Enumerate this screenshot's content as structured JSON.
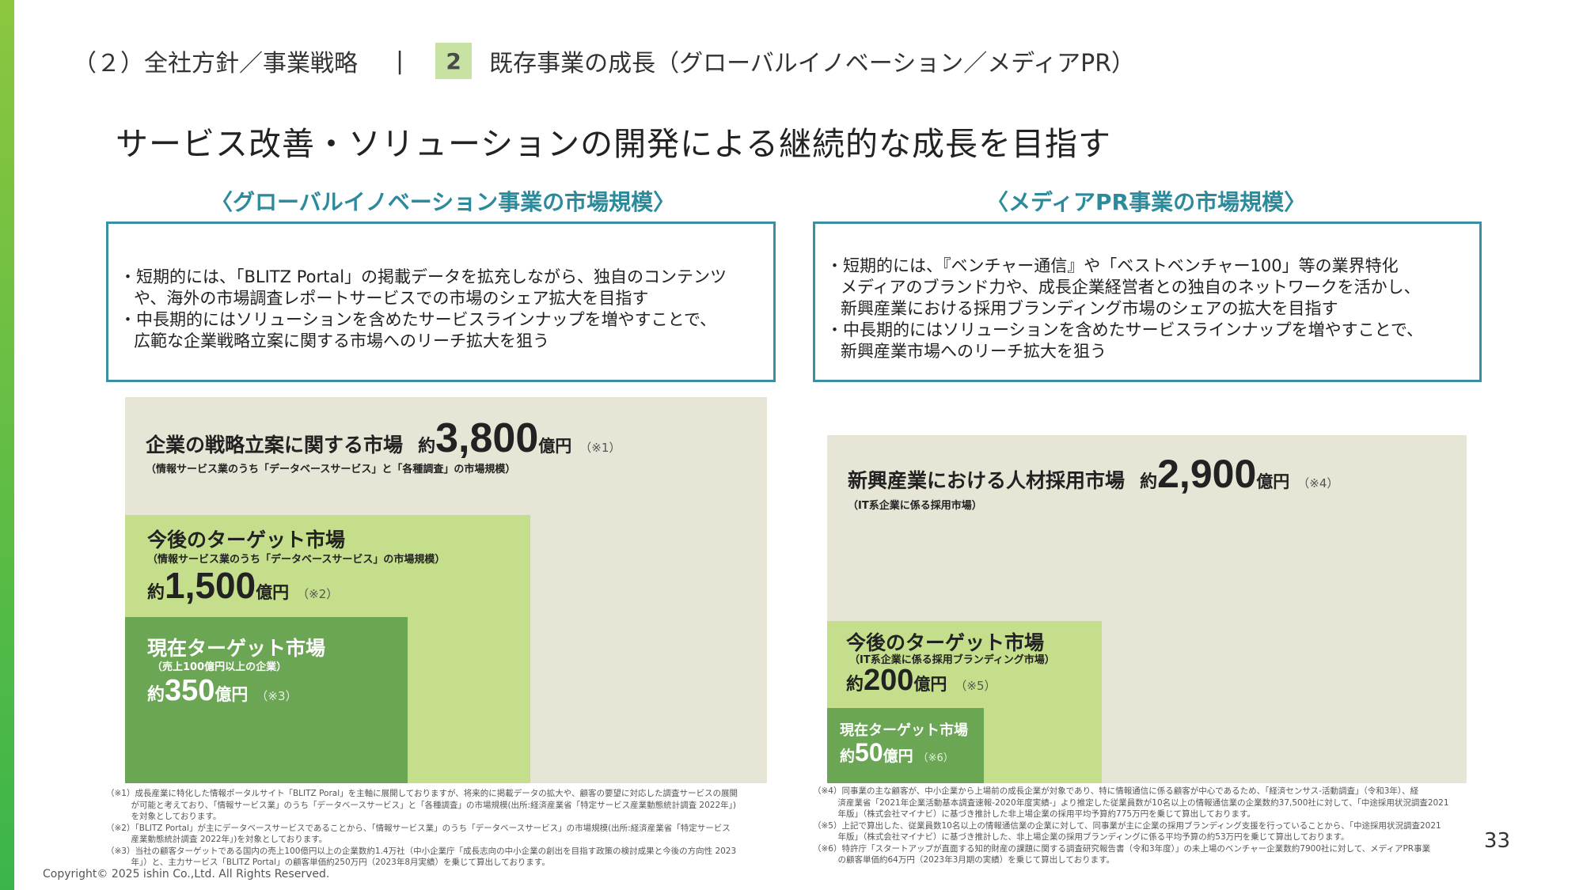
{
  "header": {
    "section": "（２）全社方針／事業戦略",
    "separator": "|",
    "number": "2",
    "title": "既存事業の成長（グローバルイノベーション／メディアPR）"
  },
  "main_title": "サービス改善・ソリューションの開発による継続的な成長を目指す",
  "left": {
    "heading": "〈グローバルイノベーション事業の市場規模〉",
    "bullets": [
      "短期的には、「BLITZ Portal」の掲載データを拡充しながら、独自のコンテンツ\nや、海外の市場調査レポートサービスでの市場のシェア拡大を目指す",
      "中長期的にはソリューションを含めたサービスラインナップを増やすことで、\n広範な企業戦略立案に関する市場へのリーチ拡大を狙う"
    ],
    "outer": {
      "title": "企業の戦略立案に関する市場",
      "prefix": "約",
      "value": "3,800",
      "unit": "億円",
      "note": "（※1）",
      "sub": "（情報サービス業のうち「データベースサービス」と「各種調査」の市場規模）"
    },
    "mid": {
      "title": "今後のターゲット市場",
      "sub": "（情報サービス業のうち「データベースサービス」の市場規模）",
      "prefix": "約",
      "value": "1,500",
      "unit": "億円",
      "note": "（※2）"
    },
    "inner": {
      "title": "現在ターゲット市場",
      "sub": "（売上100億円以上の企業）",
      "prefix": "約",
      "value": "350",
      "unit": "億円",
      "note": "（※3）"
    },
    "notes": [
      "（※1）成長産業に特化した情報ポータルサイト「BLITZ Poral」を主軸に展開しておりますが、将来的に掲載データの拡大や、顧客の要望に対応した調査サービスの展開",
      "　　　が可能と考えており、「情報サービス業」のうち「データベースサービス」と「各種調査」の市場規模(出所:経済産業省「特定サービス産業動態統計調査 2022年」)",
      "　　　を対象としております。",
      "（※2）「BLITZ Portal」が主にデータベースサービスであることから、「情報サービス業」のうち「データベースサービス」の市場規模(出所:経済産業省「特定サービス",
      "　　　産業動態統計調査 2022年」)を対象としております。",
      "（※3）当社の顧客ターゲットである国内の売上100億円以上の企業数約1.4万社（中小企業庁「成長志向の中小企業の創出を目指す政策の検討成果と今後の方向性 2023",
      "　　　年」）と、主力サービス「BLITZ Portal」の顧客単価約250万円（2023年8月実績）を乗じて算出しております。"
    ]
  },
  "right": {
    "heading": "〈メディアPR事業の市場規模〉",
    "bullets": [
      "短期的には、『ベンチャー通信』や「ベストベンチャー100」等の業界特化\nメディアのブランド力や、成長企業経営者との独自のネットワークを活かし、\n新興産業における採用ブランディング市場のシェアの拡大を目指す",
      "中長期的にはソリューションを含めたサービスラインナップを増やすことで、\n新興産業市場へのリーチ拡大を狙う"
    ],
    "outer": {
      "title": "新興産業における人材採用市場",
      "prefix": "約",
      "value": "2,900",
      "unit": "億円",
      "note": "（※4）",
      "sub": "（IT系企業に係る採用市場）"
    },
    "mid": {
      "title": "今後のターゲット市場",
      "sub": "（IT系企業に係る採用ブランディング市場）",
      "prefix": "約",
      "value": "200",
      "unit": "億円",
      "note": "（※5）"
    },
    "inner": {
      "title": "現在ターゲット市場",
      "prefix": "約",
      "value": "50",
      "unit": "億円",
      "note": "（※6）"
    },
    "notes": [
      "（※4）同事業の主な顧客が、中小企業から上場前の成長企業が対象であり、特に情報通信に係る顧客が中心であるため、「経済センサス-活動調査」（令和3年）、経",
      "　　　済産業省「2021年企業活動基本調査速報-2020年度実績-」より推定した従業員数が10名以上の情報通信業の企業数約37,500社に対して、「中途採用状況調査2021",
      "　　　年版」（株式会社マイナビ）に基づき推計した非上場企業の採用平均予算約775万円を乗じて算出しております。",
      "（※5）上記で算出した、従業員数10名以上の情報通信業の企業に対して、同事業が主に企業の採用ブランディング支援を行っていることから、「中途採用状況調査2021",
      "　　　年版」（株式会社マイナビ）に基づき推計した、非上場企業の採用ブランディングに係る平均予算の約53万円を乗じて算出しております。",
      "（※6）特許庁「スタートアップが直面する知的財産の課題に関する調査研究報告書（令和3年度）」の未上場のベンチャー企業数約7900社に対して、メディアPR事業",
      "　　　の顧客単価約64万円（2023年3月期の実績）を乗じて算出しております。"
    ]
  },
  "page_number": "33",
  "copyright": "Copyright© 2025 ishin Co.,Ltd. All Rights Reserved."
}
